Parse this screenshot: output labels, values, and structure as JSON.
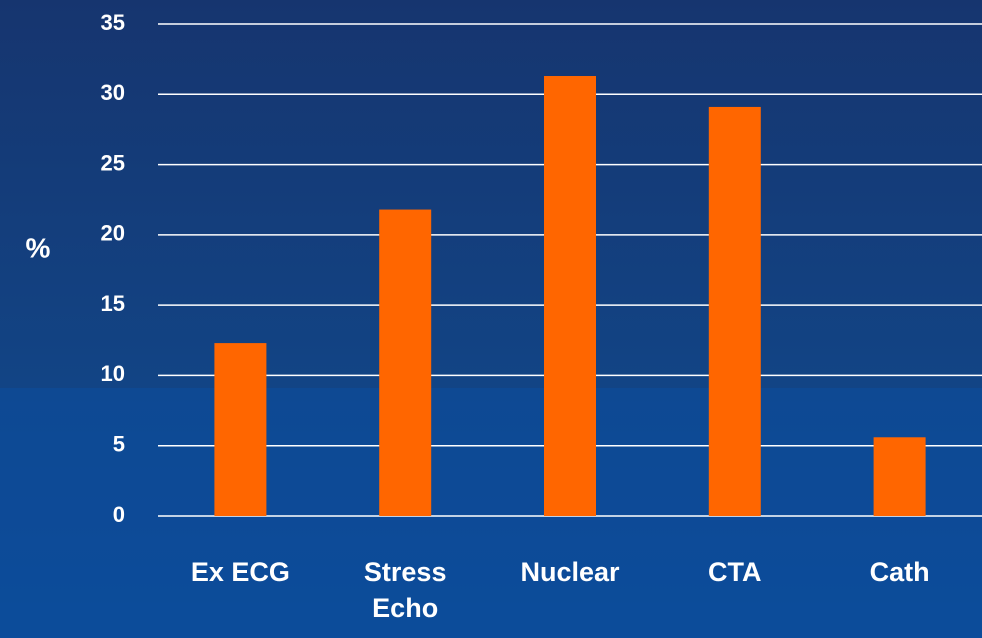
{
  "chart_data": {
    "type": "bar",
    "y_label": "%",
    "categories": [
      "Ex ECG",
      "Stress Echo",
      "Nuclear",
      "CTA",
      "Cath"
    ],
    "values": [
      12.3,
      21.8,
      31.3,
      29.1,
      5.6
    ],
    "color": "#ff6600",
    "ylim": [
      0,
      35
    ],
    "yticks": [
      0,
      5,
      10,
      15,
      20,
      25,
      30,
      35
    ],
    "grid": true
  }
}
